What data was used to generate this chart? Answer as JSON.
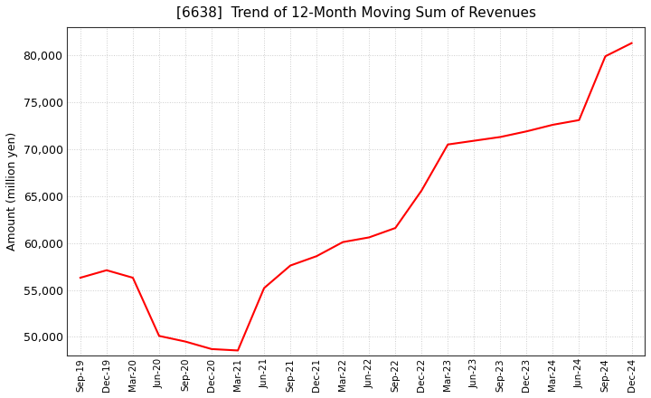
{
  "title": "[6638]  Trend of 12-Month Moving Sum of Revenues",
  "ylabel": "Amount (million yen)",
  "line_color": "#ff0000",
  "line_width": 1.5,
  "background_color": "#ffffff",
  "plot_background": "#ffffff",
  "ylim": [
    48000,
    83000
  ],
  "yticks": [
    50000,
    55000,
    60000,
    65000,
    70000,
    75000,
    80000
  ],
  "x_labels": [
    "Sep-19",
    "Dec-19",
    "Mar-20",
    "Jun-20",
    "Sep-20",
    "Dec-20",
    "Mar-21",
    "Jun-21",
    "Sep-21",
    "Dec-21",
    "Mar-22",
    "Jun-22",
    "Sep-22",
    "Dec-22",
    "Mar-23",
    "Jun-23",
    "Sep-23",
    "Dec-23",
    "Mar-24",
    "Jun-24",
    "Sep-24",
    "Dec-24"
  ],
  "values": [
    56300,
    57100,
    56300,
    50100,
    49500,
    48700,
    48550,
    55200,
    57600,
    58600,
    60100,
    60600,
    61600,
    65600,
    70500,
    70900,
    71300,
    71900,
    72600,
    73100,
    79900,
    81300
  ]
}
